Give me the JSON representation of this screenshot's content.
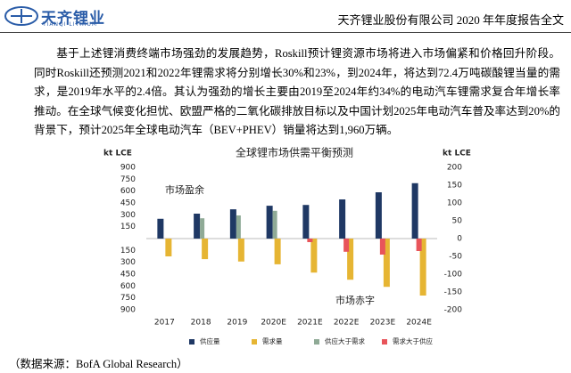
{
  "header": {
    "logo_cn": "天齐锂业",
    "logo_en": "TIANQI LITHIUM",
    "title": "天齐锂业股份有限公司 2020 年年度报告全文"
  },
  "paragraph": "基于上述锂消费终端市场强劲的发展趋势，Roskill预计锂资源市场将进入市场偏紧和价格回升阶段。同时Roskill还预测2021和2022年锂需求将分别增长30%和23%，到2024年，将达到72.4万吨碳酸锂当量的需求，是2019年水平的2.4倍。其认为强劲的增长主要由2019至2024年约34%的电动汽车锂需求复合年增长率推动。在全球气候变化担忧、欧盟严格的二氧化碳排放目标以及中国计划2025年电动汽车普及率达到20%的背景下，预计2025年全球电动汽车（BEV+PHEV）销量将达到1,960万辆。",
  "chart_data": {
    "type": "bar",
    "title": "全球锂市场供需平衡预测",
    "ylabel": "kt LCE",
    "y2label": "kt LCE",
    "annotations": [
      "市场盈余",
      "市场赤字"
    ],
    "categories": [
      "2017",
      "2018",
      "2019",
      "2020E",
      "2021E",
      "2022E",
      "2023E",
      "2024E"
    ],
    "series": [
      {
        "name": "供应量",
        "color": "#1f3864",
        "values": [
          250,
          315,
          370,
          415,
          425,
          495,
          585,
          700
        ]
      },
      {
        "name": "需求量",
        "color": "#e6b533",
        "values": [
          -225,
          -260,
          -290,
          -325,
          -430,
          -520,
          -610,
          -720
        ]
      },
      {
        "name": "供应大于需求",
        "color": "#8faa96",
        "axis": "y2",
        "values": [
          null,
          57,
          65,
          78,
          null,
          null,
          null,
          null
        ]
      },
      {
        "name": "需求大于供应",
        "color": "#e8545a",
        "axis": "y2",
        "values": [
          null,
          null,
          null,
          null,
          -10,
          -37,
          -45,
          -35
        ]
      }
    ],
    "ylim": [
      -900,
      900
    ],
    "yticks": [
      900,
      750,
      600,
      450,
      300,
      150,
      {
        "value": -150,
        "label": "150"
      },
      {
        "value": -300,
        "label": "300"
      },
      {
        "value": -450,
        "label": "450"
      },
      {
        "value": -600,
        "label": "600"
      },
      {
        "value": -750,
        "label": "750"
      },
      {
        "value": -900,
        "label": "900"
      }
    ],
    "y2lim": [
      -200,
      200
    ],
    "y2ticks": [
      200,
      150,
      100,
      50,
      0,
      -50,
      -100,
      -150,
      -200
    ]
  },
  "source": "（数据来源：BofA Global Research）"
}
